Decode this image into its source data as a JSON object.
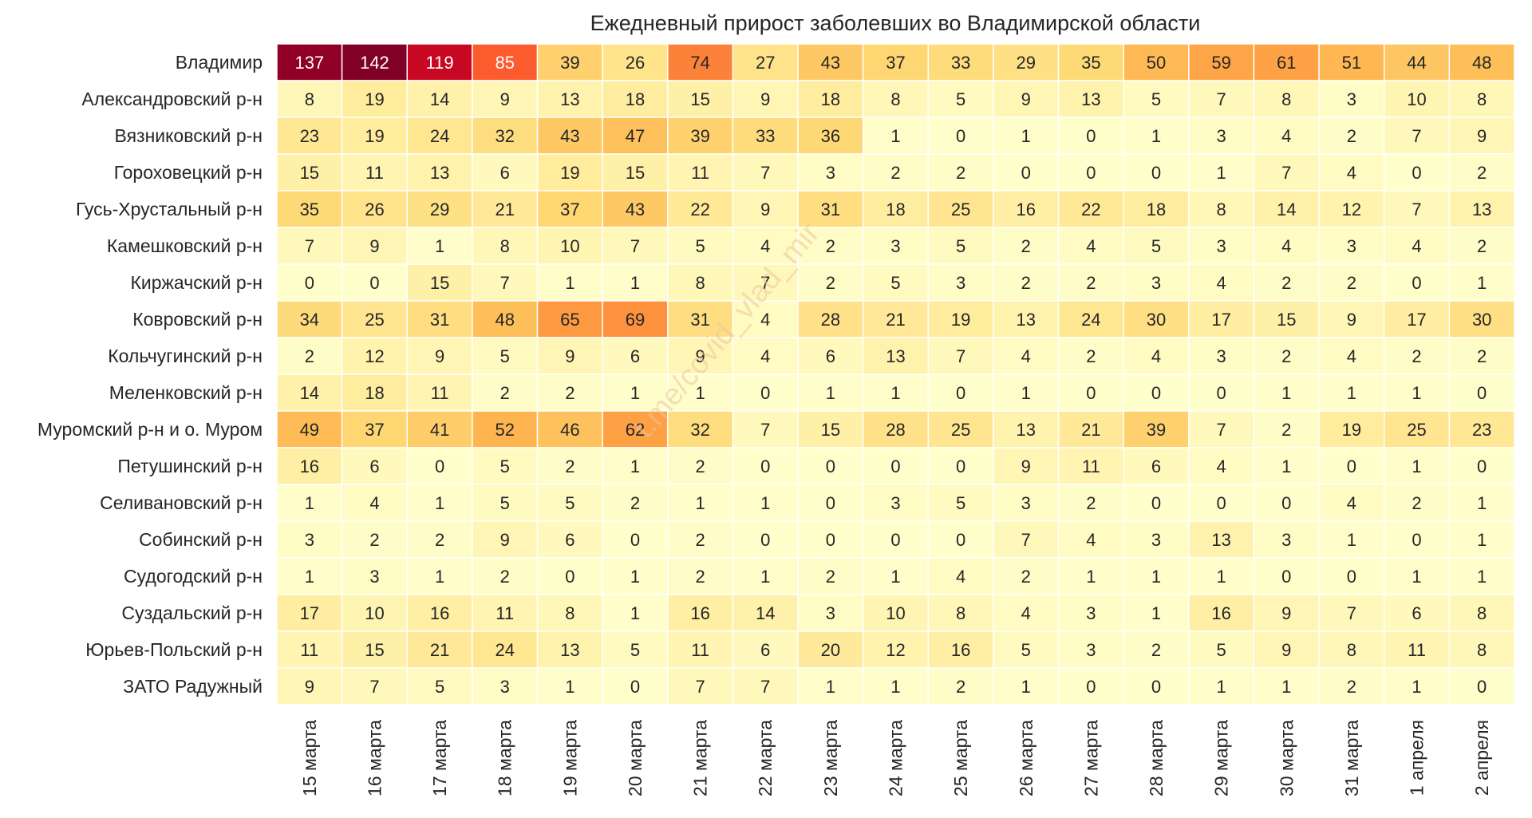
{
  "chart_data": {
    "type": "heatmap",
    "title": "Ежедневный прирост заболевших во Владимирской области",
    "x_categories": [
      "15 марта",
      "16 марта",
      "17 марта",
      "18 марта",
      "19 марта",
      "20 марта",
      "21 марта",
      "22 марта",
      "23 марта",
      "24 марта",
      "25 марта",
      "26 марта",
      "27 марта",
      "28 марта",
      "29 марта",
      "30 марта",
      "31 марта",
      "1 апреля",
      "2 апреля"
    ],
    "y_categories": [
      "Владимир",
      "Александровский р-н",
      "Вязниковский р-н",
      "Гороховецкий р-н",
      "Гусь-Хрустальный р-н",
      "Камешковский р-н",
      "Киржачский р-н",
      "Ковровский р-н",
      "Кольчугинский р-н",
      "Меленковский р-н",
      "Муромский р-н и о. Муром",
      "Петушинский р-н",
      "Селивановский р-н",
      "Собинский р-н",
      "Судогодский р-н",
      "Суздальский р-н",
      "Юрьев-Польский р-н",
      "ЗАТО Радужный"
    ],
    "values": [
      [
        137,
        142,
        119,
        85,
        39,
        26,
        74,
        27,
        43,
        37,
        33,
        29,
        35,
        50,
        59,
        61,
        51,
        44,
        48
      ],
      [
        8,
        19,
        14,
        9,
        13,
        18,
        15,
        9,
        18,
        8,
        5,
        9,
        13,
        5,
        7,
        8,
        3,
        10,
        8
      ],
      [
        23,
        19,
        24,
        32,
        43,
        47,
        39,
        33,
        36,
        1,
        0,
        1,
        0,
        1,
        3,
        4,
        2,
        7,
        9
      ],
      [
        15,
        11,
        13,
        6,
        19,
        15,
        11,
        7,
        3,
        2,
        2,
        0,
        0,
        0,
        1,
        7,
        4,
        0,
        2
      ],
      [
        35,
        26,
        29,
        21,
        37,
        43,
        22,
        9,
        31,
        18,
        25,
        16,
        22,
        18,
        8,
        14,
        12,
        7,
        13
      ],
      [
        7,
        9,
        1,
        8,
        10,
        7,
        5,
        4,
        2,
        3,
        5,
        2,
        4,
        5,
        3,
        4,
        3,
        4,
        2
      ],
      [
        0,
        0,
        15,
        7,
        1,
        1,
        8,
        7,
        2,
        5,
        3,
        2,
        2,
        3,
        4,
        2,
        2,
        0,
        1
      ],
      [
        34,
        25,
        31,
        48,
        65,
        69,
        31,
        4,
        28,
        21,
        19,
        13,
        24,
        30,
        17,
        15,
        9,
        17,
        30
      ],
      [
        2,
        12,
        9,
        5,
        9,
        6,
        9,
        4,
        6,
        13,
        7,
        4,
        2,
        4,
        3,
        2,
        4,
        2,
        2
      ],
      [
        14,
        18,
        11,
        2,
        2,
        1,
        1,
        0,
        1,
        1,
        0,
        1,
        0,
        0,
        0,
        1,
        1,
        1,
        0
      ],
      [
        49,
        37,
        41,
        52,
        46,
        62,
        32,
        7,
        15,
        28,
        25,
        13,
        21,
        39,
        7,
        2,
        19,
        25,
        23
      ],
      [
        16,
        6,
        0,
        5,
        2,
        1,
        2,
        0,
        0,
        0,
        0,
        9,
        11,
        6,
        4,
        1,
        0,
        1,
        0
      ],
      [
        1,
        4,
        1,
        5,
        5,
        2,
        1,
        1,
        0,
        3,
        5,
        3,
        2,
        0,
        0,
        0,
        4,
        2,
        1
      ],
      [
        3,
        2,
        2,
        9,
        6,
        0,
        2,
        0,
        0,
        0,
        0,
        7,
        4,
        3,
        13,
        3,
        1,
        0,
        1
      ],
      [
        1,
        3,
        1,
        2,
        0,
        1,
        2,
        1,
        2,
        1,
        4,
        2,
        1,
        1,
        1,
        0,
        0,
        1,
        1
      ],
      [
        17,
        10,
        16,
        11,
        8,
        1,
        16,
        14,
        3,
        10,
        8,
        4,
        3,
        1,
        16,
        9,
        7,
        6,
        8
      ],
      [
        11,
        15,
        21,
        24,
        13,
        5,
        11,
        6,
        20,
        12,
        16,
        5,
        3,
        2,
        5,
        9,
        8,
        11,
        8
      ],
      [
        9,
        7,
        5,
        3,
        1,
        0,
        7,
        7,
        1,
        1,
        2,
        1,
        0,
        0,
        1,
        1,
        2,
        1,
        0
      ]
    ],
    "colormap": "YlOrRd",
    "color_scale_min": 0,
    "color_scale_max": 142,
    "colorbar": false,
    "grid_line_color": "#ffffff",
    "watermark": "t.me/covid_vlad_mir"
  }
}
